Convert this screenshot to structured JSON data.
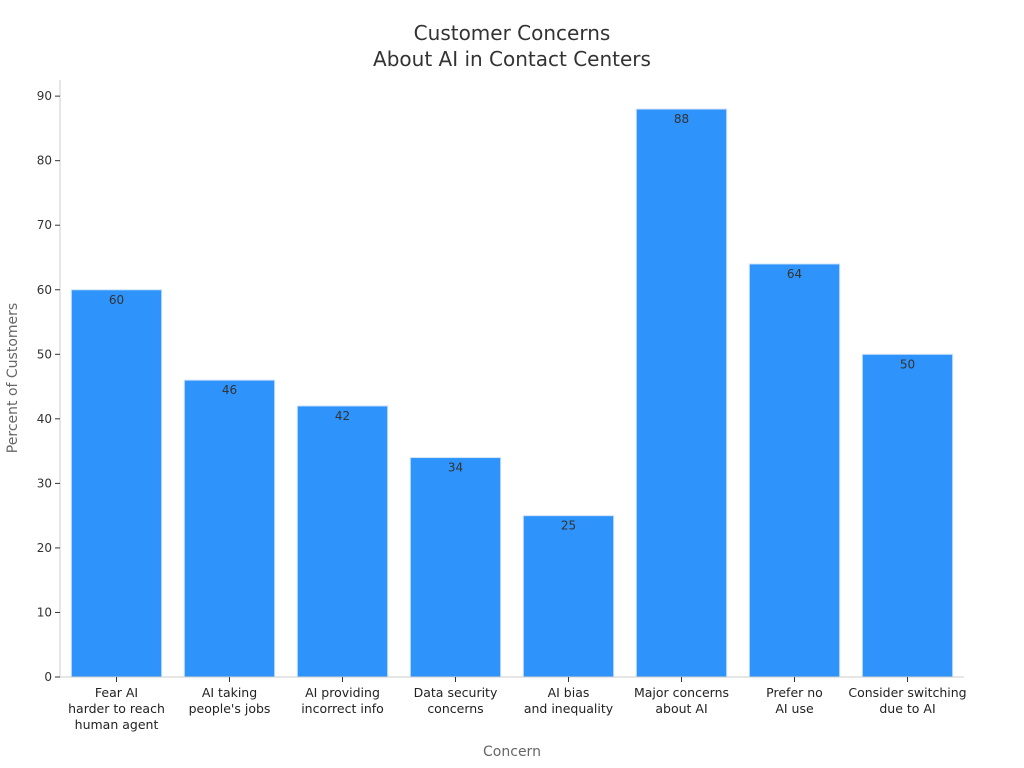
{
  "chart_data": {
    "type": "bar",
    "title": [
      "Customer Concerns",
      "About AI in Contact Centers"
    ],
    "xlabel": "Concern",
    "ylabel": "Percent of Customers",
    "categories": [
      [
        "Fear AI",
        "harder to reach",
        "human agent"
      ],
      [
        "AI taking",
        "people's jobs"
      ],
      [
        "AI providing",
        "incorrect info"
      ],
      [
        "Data security",
        "concerns"
      ],
      [
        "AI bias",
        "and inequality"
      ],
      [
        "Major concerns",
        "about AI"
      ],
      [
        "Prefer no",
        "AI use"
      ],
      [
        "Consider switching",
        "due to AI"
      ]
    ],
    "values": [
      60,
      46,
      42,
      34,
      25,
      88,
      64,
      50
    ],
    "ylim": [
      0,
      92.5
    ],
    "yticks": [
      0,
      10,
      20,
      30,
      40,
      50,
      60,
      70,
      80,
      90
    ],
    "grid": false,
    "legend": "none",
    "colors": {
      "bar": "#2e93fa",
      "bar_edge": "#d0e4fb",
      "axis": "#cccccc",
      "tick": "#333333"
    }
  }
}
